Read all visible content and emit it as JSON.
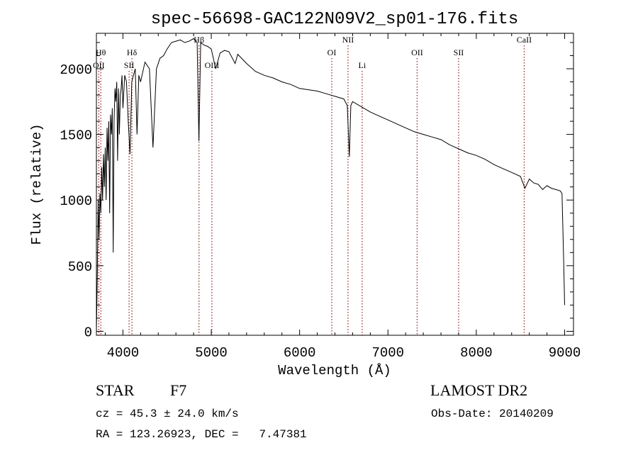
{
  "chart_data": {
    "type": "line",
    "title": "spec-56698-GAC122N09V2_sp01-176.fits",
    "xlabel": "Wavelength (Å)",
    "ylabel": "Flux (relative)",
    "xlim": [
      3700,
      9100
    ],
    "ylim": [
      -30,
      2270
    ],
    "xticks": [
      "4000",
      "5000",
      "6000",
      "7000",
      "8000",
      "9000"
    ],
    "xtick_values": [
      4000,
      5000,
      6000,
      7000,
      8000,
      9000
    ],
    "yticks": [
      "0",
      "500",
      "1000",
      "1500",
      "2000"
    ],
    "ytick_values": [
      0,
      500,
      1000,
      1500,
      2000
    ],
    "grid": false,
    "legend": "none",
    "line_color": "#000000",
    "marker_color": "#8b1a1a",
    "series": [
      {
        "x": [
          3700,
          3710,
          3720,
          3730,
          3740,
          3750,
          3760,
          3770,
          3780,
          3790,
          3800,
          3810,
          3820,
          3830,
          3840,
          3850,
          3860,
          3870,
          3880,
          3890,
          3900,
          3910,
          3920,
          3930,
          3940,
          3950,
          3960,
          3970,
          3980,
          3990,
          4000,
          4020,
          4040,
          4060,
          4080,
          4100,
          4120,
          4140,
          4160,
          4180,
          4200,
          4250,
          4300,
          4340,
          4380,
          4420,
          4460,
          4500,
          4550,
          4600,
          4650,
          4700,
          4750,
          4800,
          4840,
          4860,
          4880,
          4920,
          4960,
          5000,
          5050,
          5100,
          5150,
          5200,
          5270,
          5300,
          5400,
          5500,
          5600,
          5700,
          5800,
          5900,
          6000,
          6100,
          6200,
          6300,
          6400,
          6500,
          6540,
          6563,
          6580,
          6600,
          6700,
          6800,
          6900,
          7000,
          7100,
          7200,
          7300,
          7400,
          7500,
          7600,
          7700,
          7800,
          7900,
          8000,
          8100,
          8200,
          8300,
          8400,
          8500,
          8550,
          8600,
          8650,
          8700,
          8750,
          8800,
          8850,
          8900,
          8950,
          8970,
          8990,
          9000
        ],
        "y": [
          0,
          400,
          1000,
          700,
          1050,
          900,
          1250,
          1000,
          1350,
          1100,
          1400,
          1000,
          1550,
          1300,
          1600,
          900,
          1650,
          1500,
          1700,
          600,
          1600,
          1850,
          1750,
          1900,
          1300,
          1850,
          1500,
          1800,
          1850,
          1950,
          1700,
          1950,
          1900,
          1600,
          1350,
          1900,
          1950,
          2000,
          1500,
          1950,
          1900,
          2050,
          2000,
          1400,
          2000,
          2080,
          2100,
          2150,
          2200,
          2210,
          2220,
          2200,
          2210,
          2230,
          2200,
          1450,
          2200,
          2180,
          2170,
          2150,
          2000,
          2120,
          2140,
          2130,
          2040,
          2110,
          2040,
          1980,
          1950,
          1930,
          1900,
          1880,
          1850,
          1840,
          1830,
          1810,
          1790,
          1770,
          1720,
          1330,
          1720,
          1750,
          1710,
          1670,
          1640,
          1610,
          1580,
          1550,
          1520,
          1500,
          1480,
          1460,
          1420,
          1390,
          1360,
          1340,
          1310,
          1270,
          1240,
          1210,
          1180,
          1090,
          1160,
          1130,
          1120,
          1080,
          1110,
          1090,
          1080,
          1070,
          1050,
          500,
          200
        ]
      }
    ],
    "line_markers": [
      {
        "label": "Hθ",
        "x": 3750,
        "row": 1
      },
      {
        "label": "OII",
        "x": 3727,
        "row": 2
      },
      {
        "label": "Hδ",
        "x": 4102,
        "row": 1
      },
      {
        "label": "SII",
        "x": 4070,
        "row": 2
      },
      {
        "label": "Hβ",
        "x": 4861,
        "row": 0
      },
      {
        "label": "OIII",
        "x": 5007,
        "row": 2
      },
      {
        "label": "OI",
        "x": 6364,
        "row": 1
      },
      {
        "label": "NII",
        "x": 6548,
        "row": 0
      },
      {
        "label": "Li",
        "x": 6708,
        "row": 2
      },
      {
        "label": "OII",
        "x": 7330,
        "row": 1
      },
      {
        "label": "SII",
        "x": 7800,
        "row": 1
      },
      {
        "label": "CaII",
        "x": 8542,
        "row": 0
      }
    ]
  },
  "info": {
    "object_type": "STAR",
    "subclass": "F7",
    "survey": "LAMOST DR2",
    "cz": "cz = 45.3 ± 24.0 km/s",
    "obs_date": "Obs-Date: 20140209",
    "coords": "RA = 123.26923, DEC =   7.47381"
  }
}
